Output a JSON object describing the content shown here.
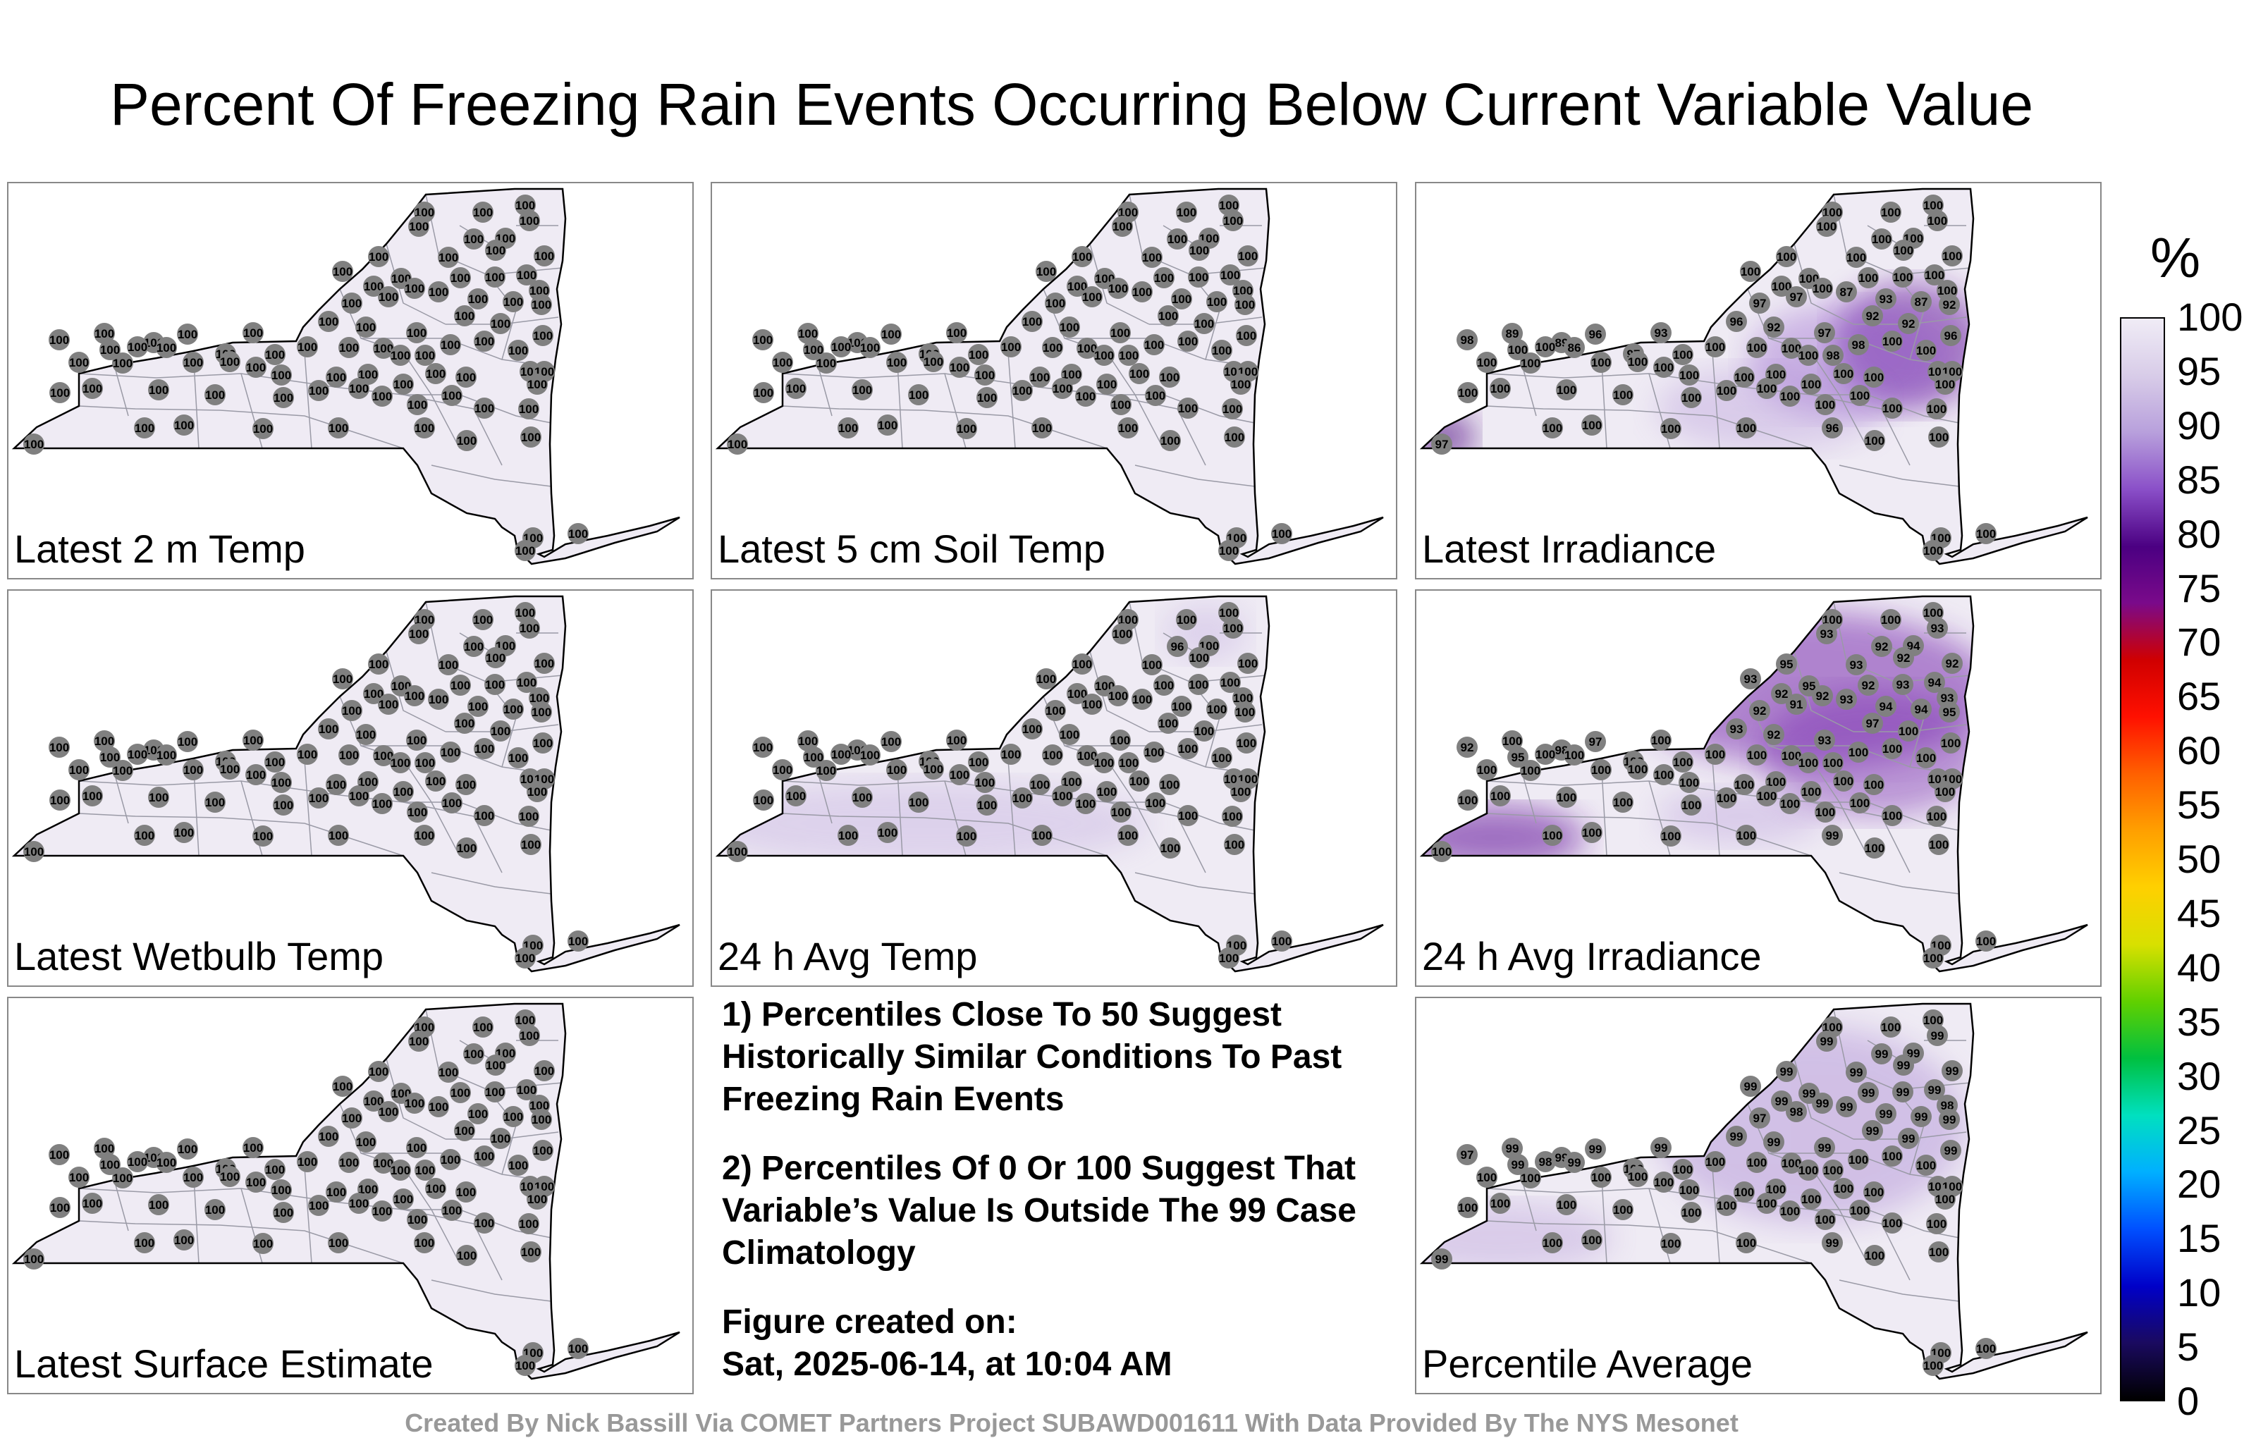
{
  "title": "Percent Of Freezing Rain Events Occurring Below Current Variable Value",
  "panels": [
    {
      "label": "Latest 2 m Temp",
      "tint": "none",
      "values": [
        "100",
        "100",
        "100",
        "100",
        "100",
        "100",
        "100",
        "100",
        "100",
        "100",
        "100",
        "100",
        "100",
        "100",
        "100",
        "100",
        "100",
        "100",
        "100",
        "100",
        "100",
        "100",
        "100",
        "100",
        "100",
        "100",
        "100",
        "100",
        "100",
        "100",
        "100",
        "100",
        "100",
        "100",
        "100",
        "100",
        "100",
        "100",
        "100",
        "100",
        "100",
        "100",
        "100",
        "100",
        "100",
        "100",
        "100",
        "100",
        "100",
        "100",
        "100",
        "100",
        "100",
        "100",
        "100",
        "100",
        "100",
        "100",
        "100",
        "100",
        "100",
        "100",
        "100",
        "100",
        "100",
        "100",
        "100",
        "100",
        "100",
        "100",
        "100",
        "100",
        "100",
        "100",
        "100",
        "100",
        "100",
        "100",
        "100",
        "100",
        "100",
        "100",
        "100",
        "100",
        "100",
        "100"
      ]
    },
    {
      "label": "Latest 5 cm Soil Temp",
      "tint": "none",
      "values": [
        "100",
        "100",
        "100",
        "100",
        "100",
        "100",
        "100",
        "100",
        "100",
        "100",
        "100",
        "100",
        "100",
        "100",
        "100",
        "100",
        "100",
        "100",
        "100",
        "100",
        "100",
        "100",
        "100",
        "100",
        "100",
        "100",
        "100",
        "100",
        "100",
        "100",
        "100",
        "100",
        "100",
        "100",
        "100",
        "100",
        "100",
        "100",
        "100",
        "100",
        "100",
        "100",
        "100",
        "100",
        "100",
        "100",
        "100",
        "100",
        "100",
        "100",
        "100",
        "100",
        "100",
        "100",
        "100",
        "100",
        "100",
        "100",
        "100",
        "100",
        "100",
        "100",
        "100",
        "100",
        "100",
        "100",
        "100",
        "100",
        "100",
        "100",
        "100",
        "100",
        "100",
        "100",
        "100",
        "100",
        "100",
        "100",
        "100",
        "100",
        "100",
        "100",
        "100",
        "100",
        "100",
        "100"
      ]
    },
    {
      "label": "Latest Irradiance",
      "tint": "irr",
      "values": [
        "100",
        "100",
        "100",
        "100",
        "100",
        "100",
        "100",
        "100",
        "100",
        "100",
        "100",
        "100",
        "100",
        "100",
        "100",
        "100",
        "100",
        "100",
        "100",
        "97",
        "97",
        "87",
        "93",
        "87",
        "92",
        "89",
        "89",
        "96",
        "93",
        "96",
        "92",
        "97",
        "92",
        "92",
        "96",
        "98",
        "100",
        "100",
        "86",
        "97",
        "100",
        "100",
        "100",
        "100",
        "100",
        "98",
        "98",
        "100",
        "100",
        "100",
        "100",
        "100",
        "100",
        "100",
        "100",
        "100",
        "100",
        "100",
        "100",
        "100",
        "100",
        "100",
        "100",
        "100",
        "100",
        "100",
        "100",
        "100",
        "100",
        "100",
        "100",
        "100",
        "100",
        "100",
        "100",
        "100",
        "100",
        "100",
        "96",
        "97",
        "100",
        "100",
        "100",
        "100",
        "100",
        "100"
      ]
    },
    {
      "label": "Latest Wetbulb Temp",
      "tint": "none",
      "values": [
        "100",
        "100",
        "100",
        "100",
        "100",
        "100",
        "100",
        "100",
        "100",
        "100",
        "100",
        "100",
        "100",
        "100",
        "100",
        "100",
        "100",
        "100",
        "100",
        "100",
        "100",
        "100",
        "100",
        "100",
        "100",
        "100",
        "100",
        "100",
        "100",
        "100",
        "100",
        "100",
        "100",
        "100",
        "100",
        "100",
        "100",
        "100",
        "100",
        "100",
        "100",
        "100",
        "100",
        "100",
        "100",
        "100",
        "100",
        "100",
        "100",
        "100",
        "100",
        "100",
        "100",
        "100",
        "100",
        "100",
        "100",
        "100",
        "100",
        "100",
        "100",
        "100",
        "100",
        "100",
        "100",
        "100",
        "100",
        "100",
        "100",
        "100",
        "100",
        "100",
        "100",
        "100",
        "100",
        "100",
        "100",
        "100",
        "100",
        "100",
        "100",
        "100",
        "100",
        "100",
        "100",
        "100"
      ]
    },
    {
      "label": "24 h Avg Temp",
      "tint": "light",
      "values": [
        "100",
        "100",
        "100",
        "100",
        "100",
        "96",
        "100",
        "100",
        "100",
        "100",
        "100",
        "100",
        "100",
        "100",
        "100",
        "100",
        "100",
        "100",
        "100",
        "100",
        "100",
        "100",
        "100",
        "100",
        "100",
        "100",
        "100",
        "100",
        "100",
        "100",
        "100",
        "100",
        "100",
        "100",
        "100",
        "100",
        "100",
        "100",
        "100",
        "100",
        "100",
        "100",
        "100",
        "100",
        "100",
        "100",
        "100",
        "100",
        "100",
        "100",
        "100",
        "100",
        "100",
        "100",
        "100",
        "100",
        "100",
        "100",
        "100",
        "100",
        "100",
        "100",
        "100",
        "100",
        "100",
        "100",
        "100",
        "100",
        "100",
        "100",
        "100",
        "100",
        "100",
        "100",
        "100",
        "100",
        "100",
        "100",
        "100",
        "100",
        "100",
        "100",
        "100",
        "100",
        "100",
        "100"
      ]
    },
    {
      "label": "24 h Avg Irradiance",
      "tint": "avgirr",
      "values": [
        "100",
        "100",
        "100",
        "93",
        "93",
        "92",
        "94",
        "95",
        "93",
        "95",
        "93",
        "92",
        "92",
        "92",
        "92",
        "92",
        "93",
        "94",
        "93",
        "92",
        "91",
        "93",
        "94",
        "94",
        "95",
        "100",
        "98",
        "97",
        "100",
        "93",
        "92",
        "93",
        "97",
        "100",
        "100",
        "92",
        "95",
        "100",
        "100",
        "100",
        "100",
        "100",
        "100",
        "100",
        "100",
        "100",
        "100",
        "100",
        "100",
        "100",
        "100",
        "100",
        "100",
        "100",
        "100",
        "100",
        "100",
        "100",
        "100",
        "100",
        "100",
        "100",
        "100",
        "100",
        "100",
        "100",
        "100",
        "100",
        "100",
        "100",
        "100",
        "100",
        "100",
        "100",
        "100",
        "100",
        "100",
        "100",
        "99",
        "100",
        "100",
        "100",
        "100",
        "100",
        "100",
        "100"
      ]
    },
    {
      "label": "Latest Surface Estimate",
      "tint": "none",
      "values": [
        "100",
        "100",
        "100",
        "100",
        "100",
        "100",
        "100",
        "100",
        "100",
        "100",
        "100",
        "100",
        "100",
        "100",
        "100",
        "100",
        "100",
        "100",
        "100",
        "100",
        "100",
        "100",
        "100",
        "100",
        "100",
        "100",
        "100",
        "100",
        "100",
        "100",
        "100",
        "100",
        "100",
        "100",
        "100",
        "100",
        "100",
        "100",
        "100",
        "100",
        "100",
        "100",
        "100",
        "100",
        "100",
        "100",
        "100",
        "100",
        "100",
        "100",
        "100",
        "100",
        "100",
        "100",
        "100",
        "100",
        "100",
        "100",
        "100",
        "100",
        "100",
        "100",
        "100",
        "100",
        "100",
        "100",
        "100",
        "100",
        "100",
        "100",
        "100",
        "100",
        "100",
        "100",
        "100",
        "100",
        "100",
        "100",
        "100",
        "100",
        "100",
        "100",
        "100",
        "100",
        "100",
        "100"
      ]
    },
    {
      "label": "Percentile Average",
      "tint": "avg",
      "values": [
        "100",
        "100",
        "100",
        "99",
        "99",
        "99",
        "99",
        "99",
        "99",
        "99",
        "99",
        "99",
        "99",
        "99",
        "99",
        "99",
        "99",
        "99",
        "98",
        "97",
        "98",
        "99",
        "99",
        "99",
        "99",
        "99",
        "99",
        "99",
        "99",
        "99",
        "99",
        "99",
        "99",
        "99",
        "99",
        "97",
        "99",
        "98",
        "99",
        "100",
        "100",
        "100",
        "100",
        "100",
        "100",
        "100",
        "100",
        "100",
        "100",
        "100",
        "100",
        "100",
        "100",
        "100",
        "100",
        "100",
        "100",
        "100",
        "100",
        "100",
        "100",
        "100",
        "100",
        "100",
        "100",
        "100",
        "100",
        "100",
        "100",
        "100",
        "100",
        "100",
        "100",
        "100",
        "100",
        "100",
        "100",
        "100",
        "99",
        "99",
        "100",
        "100",
        "100",
        "100",
        "100",
        "100"
      ]
    }
  ],
  "notes": [
    "1) Percentiles Close To 50 Suggest Historically Similar Conditions To Past Freezing Rain Events",
    "2) Percentiles Of 0 Or 100 Suggest That Variable’s Value Is Outside The 99 Case Climatology"
  ],
  "figure_created_label": "Figure created on:",
  "figure_created_value": "Sat, 2025-06-14, at 10:04 AM",
  "colorbar": {
    "unit": "%",
    "ticks": [
      "100",
      "95",
      "90",
      "85",
      "80",
      "75",
      "70",
      "65",
      "60",
      "55",
      "50",
      "45",
      "40",
      "35",
      "30",
      "25",
      "20",
      "15",
      "10",
      "5",
      "0"
    ],
    "stops": [
      "#000000",
      "#1a0a60",
      "#0000c8",
      "#0050ff",
      "#00b0ff",
      "#00e0c0",
      "#00c040",
      "#60d000",
      "#d8e000",
      "#ffd000",
      "#ffa000",
      "#ff6000",
      "#ff1000",
      "#d00000",
      "#7a0a8a",
      "#4b0082",
      "#8a4fc8",
      "#b8a0dc",
      "#d8cce8",
      "#f0ecf6"
    ]
  },
  "footer": "Created By Nick Bassill Via COMET Partners Project SUBAWD001611 With Data Provided By The NYS Mesonet",
  "colors": {
    "state_fill": "#efebf4",
    "marker": "#808080",
    "border": "#888888"
  }
}
